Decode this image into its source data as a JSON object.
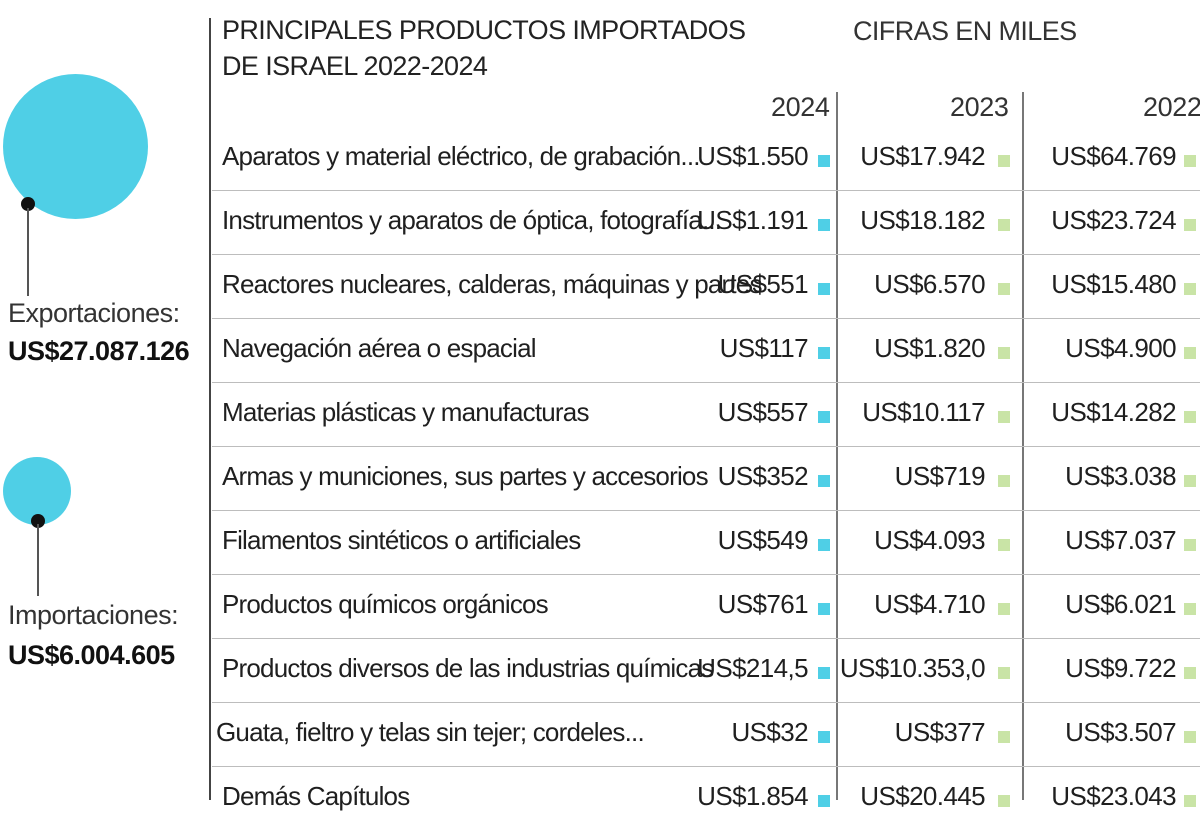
{
  "summary": {
    "exports": {
      "label": "Exportaciones:",
      "value": "US$27.087.126"
    },
    "imports": {
      "label": "Importaciones:",
      "value": "US$6.004.605"
    }
  },
  "colors": {
    "year_2024": "#4fcfe6",
    "year_2023": "#c9e4a6",
    "year_2022": "#c9e4a6",
    "bubbles": "#4fcfe6"
  },
  "chart_data": {
    "type": "table",
    "title_line1": "PRINCIPALES PRODUCTOS IMPORTADOS",
    "title_line2": "DE ISRAEL 2022-2024",
    "units": "CIFRAS EN MILES",
    "years": [
      "2024",
      "2023",
      "2022"
    ],
    "rows": [
      {
        "product": "Aparatos y material eléctrico, de grabación...",
        "v2024": "US$1.550",
        "v2023": "US$17.942",
        "v2022": "US$64.769"
      },
      {
        "product": "Instrumentos y aparatos de óptica, fotografía...",
        "v2024": "US$1.191",
        "v2023": "US$18.182",
        "v2022": "US$23.724"
      },
      {
        "product": "Reactores nucleares, calderas, máquinas y partes",
        "v2024": "US$551",
        "v2023": "US$6.570",
        "v2022": "US$15.480"
      },
      {
        "product": "Navegación aérea o espacial",
        "v2024": "US$117",
        "v2023": "US$1.820",
        "v2022": "US$4.900"
      },
      {
        "product": "Materias plásticas y manufacturas",
        "v2024": "US$557",
        "v2023": "US$10.117",
        "v2022": "US$14.282"
      },
      {
        "product": "Armas y municiones, sus partes y accesorios",
        "v2024": "US$352",
        "v2023": "US$719",
        "v2022": "US$3.038"
      },
      {
        "product": "Filamentos sintéticos o artificiales",
        "v2024": "US$549",
        "v2023": "US$4.093",
        "v2022": "US$7.037"
      },
      {
        "product": "Productos químicos orgánicos",
        "v2024": "US$761",
        "v2023": "US$4.710",
        "v2022": "US$6.021"
      },
      {
        "product": "Productos diversos de las industrias químicas",
        "v2024": "US$214,5",
        "v2023": "US$10.353,0",
        "v2022": "US$9.722"
      },
      {
        "product": "Guata, fieltro y telas sin tejer; cordeles...",
        "v2024": "US$32",
        "v2023": "US$377",
        "v2022": "US$3.507"
      },
      {
        "product": "Demás Capítulos",
        "v2024": "US$1.854",
        "v2023": "US$20.445",
        "v2022": "US$23.043"
      }
    ]
  }
}
